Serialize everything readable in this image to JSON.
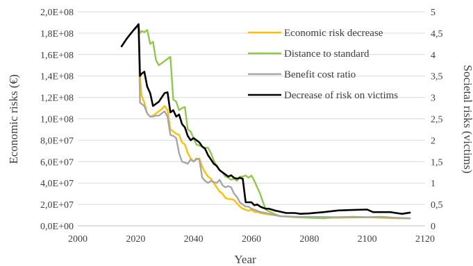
{
  "chart_data": {
    "type": "line",
    "x_axis": {
      "label": "Year",
      "range": [
        2000,
        2120
      ],
      "ticks": [
        "2000",
        "2020",
        "2040",
        "2060",
        "2080",
        "2100",
        "2120"
      ]
    },
    "y_axis_left": {
      "label": "Economic risks (€)",
      "range": [
        0,
        200000000
      ],
      "ticks": [
        "0,0E+00",
        "2,0E+07",
        "4,0E+07",
        "6,0E+07",
        "8,0E+07",
        "1,0E+08",
        "1,2E+08",
        "1,4E+08",
        "1,6E+08",
        "1,8E+08",
        "2,0E+08"
      ]
    },
    "y_axis_right": {
      "label": "Societal risks (victims)",
      "range": [
        0,
        5
      ],
      "ticks": [
        "0",
        "0,5",
        "1",
        "1,5",
        "2",
        "2,5",
        "3",
        "3,5",
        "4",
        "4,5",
        "5"
      ]
    },
    "grid": "horizontal",
    "legend_position": "top-right",
    "series": [
      {
        "name": "Economic risk decrease",
        "color": "#FFC000",
        "axis": "left",
        "points": [
          [
            2015,
            167000000.0
          ],
          [
            2017,
            175000000.0
          ],
          [
            2019,
            182000000.0
          ],
          [
            2021,
            187000000.0
          ],
          [
            2021.5,
            140000000.0
          ],
          [
            2022,
            122000000.0
          ],
          [
            2023,
            115000000.0
          ],
          [
            2024,
            105000000.0
          ],
          [
            2025,
            102000000.0
          ],
          [
            2026,
            103000000.0
          ],
          [
            2027,
            105000000.0
          ],
          [
            2028,
            107000000.0
          ],
          [
            2029,
            109000000.0
          ],
          [
            2030,
            112000000.0
          ],
          [
            2031,
            108000000.0
          ],
          [
            2032,
            90000000.0
          ],
          [
            2033,
            88000000.0
          ],
          [
            2034,
            86000000.0
          ],
          [
            2035,
            85000000.0
          ],
          [
            2036,
            78000000.0
          ],
          [
            2037,
            76000000.0
          ],
          [
            2038,
            68000000.0
          ],
          [
            2039,
            63000000.0
          ],
          [
            2040,
            60000000.0
          ],
          [
            2041,
            62000000.0
          ],
          [
            2042,
            63000000.0
          ],
          [
            2043,
            55000000.0
          ],
          [
            2044,
            50000000.0
          ],
          [
            2045,
            46000000.0
          ],
          [
            2046,
            44000000.0
          ],
          [
            2047,
            40000000.0
          ],
          [
            2048,
            36000000.0
          ],
          [
            2049,
            32000000.0
          ],
          [
            2050,
            30000000.0
          ],
          [
            2051,
            26000000.0
          ],
          [
            2052,
            25000000.0
          ],
          [
            2053,
            25000000.0
          ],
          [
            2054,
            24000000.0
          ],
          [
            2055,
            21000000.0
          ],
          [
            2056,
            18000000.0
          ],
          [
            2057,
            16000000.0
          ],
          [
            2058,
            15000000.0
          ],
          [
            2059,
            14000000.0
          ],
          [
            2060,
            15000000.0
          ],
          [
            2061,
            13000000.0
          ],
          [
            2062,
            13000000.0
          ],
          [
            2063,
            12000000.0
          ],
          [
            2065,
            11000000.0
          ],
          [
            2068,
            10000000.0
          ],
          [
            2070,
            9000000.0
          ],
          [
            2075,
            8500000.0
          ],
          [
            2080,
            8000000.0
          ],
          [
            2090,
            7500000.0
          ],
          [
            2100,
            8000000.0
          ],
          [
            2105,
            7500000.0
          ],
          [
            2110,
            7000000.0
          ],
          [
            2115,
            7000000.0
          ]
        ]
      },
      {
        "name": "Distance to standard",
        "color": "#8FC84A",
        "axis": "left",
        "points": [
          [
            2015,
            167000000.0
          ],
          [
            2017,
            175000000.0
          ],
          [
            2019,
            182000000.0
          ],
          [
            2021,
            187000000.0
          ],
          [
            2021.5,
            180000000.0
          ],
          [
            2022,
            182000000.0
          ],
          [
            2023,
            181000000.0
          ],
          [
            2024,
            183000000.0
          ],
          [
            2025,
            170000000.0
          ],
          [
            2026,
            172000000.0
          ],
          [
            2027,
            155000000.0
          ],
          [
            2028,
            150000000.0
          ],
          [
            2029,
            152000000.0
          ],
          [
            2030,
            154000000.0
          ],
          [
            2031,
            156000000.0
          ],
          [
            2032,
            158000000.0
          ],
          [
            2033,
            118000000.0
          ],
          [
            2034,
            116000000.0
          ],
          [
            2035,
            108000000.0
          ],
          [
            2036,
            110000000.0
          ],
          [
            2037,
            111000000.0
          ],
          [
            2038,
            90000000.0
          ],
          [
            2039,
            88000000.0
          ],
          [
            2040,
            82000000.0
          ],
          [
            2041,
            76000000.0
          ],
          [
            2042,
            75000000.0
          ],
          [
            2043,
            74000000.0
          ],
          [
            2044,
            73000000.0
          ],
          [
            2045,
            73000000.0
          ],
          [
            2046,
            68000000.0
          ],
          [
            2047,
            61000000.0
          ],
          [
            2048,
            56000000.0
          ],
          [
            2049,
            52000000.0
          ],
          [
            2050,
            50000000.0
          ],
          [
            2051,
            46000000.0
          ],
          [
            2052,
            45000000.0
          ],
          [
            2053,
            43000000.0
          ],
          [
            2054,
            44000000.0
          ],
          [
            2055,
            42000000.0
          ],
          [
            2056,
            46000000.0
          ],
          [
            2057,
            46000000.0
          ],
          [
            2058,
            47000000.0
          ],
          [
            2059,
            45000000.0
          ],
          [
            2060,
            47000000.0
          ],
          [
            2061,
            42000000.0
          ],
          [
            2062,
            36000000.0
          ],
          [
            2063,
            30000000.0
          ],
          [
            2064,
            22000000.0
          ],
          [
            2065,
            15000000.0
          ],
          [
            2068,
            11000000.0
          ],
          [
            2070,
            9000000.0
          ],
          [
            2075,
            8000000.0
          ],
          [
            2080,
            7500000.0
          ],
          [
            2085,
            7000000.0
          ],
          [
            2090,
            8000000.0
          ],
          [
            2095,
            8500000.0
          ],
          [
            2100,
            8000000.0
          ],
          [
            2105,
            8500000.0
          ],
          [
            2110,
            7500000.0
          ],
          [
            2115,
            7000000.0
          ]
        ]
      },
      {
        "name": "Benefit cost ratio",
        "color": "#A6A6A6",
        "axis": "left",
        "points": [
          [
            2015,
            167000000.0
          ],
          [
            2017,
            175000000.0
          ],
          [
            2019,
            182000000.0
          ],
          [
            2021,
            187000000.0
          ],
          [
            2021.5,
            115000000.0
          ],
          [
            2022,
            114000000.0
          ],
          [
            2023,
            112000000.0
          ],
          [
            2024,
            105000000.0
          ],
          [
            2025,
            102000000.0
          ],
          [
            2026,
            102000000.0
          ],
          [
            2027,
            103000000.0
          ],
          [
            2028,
            103000000.0
          ],
          [
            2029,
            105000000.0
          ],
          [
            2030,
            107000000.0
          ],
          [
            2031,
            102000000.0
          ],
          [
            2032,
            85000000.0
          ],
          [
            2033,
            84000000.0
          ],
          [
            2034,
            82000000.0
          ],
          [
            2035,
            68000000.0
          ],
          [
            2036,
            60000000.0
          ],
          [
            2037,
            59000000.0
          ],
          [
            2038,
            58000000.0
          ],
          [
            2039,
            62000000.0
          ],
          [
            2040,
            60000000.0
          ],
          [
            2041,
            63000000.0
          ],
          [
            2042,
            62000000.0
          ],
          [
            2043,
            45000000.0
          ],
          [
            2044,
            42000000.0
          ],
          [
            2045,
            40000000.0
          ],
          [
            2046,
            42000000.0
          ],
          [
            2047,
            41000000.0
          ],
          [
            2048,
            40000000.0
          ],
          [
            2049,
            43000000.0
          ],
          [
            2050,
            38000000.0
          ],
          [
            2051,
            36000000.0
          ],
          [
            2052,
            37000000.0
          ],
          [
            2053,
            36000000.0
          ],
          [
            2054,
            30000000.0
          ],
          [
            2055,
            27000000.0
          ],
          [
            2056,
            22000000.0
          ],
          [
            2057,
            20000000.0
          ],
          [
            2058,
            18000000.0
          ],
          [
            2059,
            18000000.0
          ],
          [
            2060,
            16000000.0
          ],
          [
            2061,
            15000000.0
          ],
          [
            2062,
            14000000.0
          ],
          [
            2063,
            13000000.0
          ],
          [
            2065,
            12000000.0
          ],
          [
            2068,
            10000000.0
          ],
          [
            2070,
            9000000.0
          ],
          [
            2075,
            8500000.0
          ],
          [
            2080,
            8500000.0
          ],
          [
            2090,
            8000000.0
          ],
          [
            2100,
            8000000.0
          ],
          [
            2105,
            8000000.0
          ],
          [
            2110,
            7500000.0
          ],
          [
            2115,
            7000000.0
          ]
        ]
      },
      {
        "name": "Decrease of risk on victims",
        "color": "#000000",
        "axis": "right",
        "points": [
          [
            2015,
            4.18
          ],
          [
            2017,
            4.38
          ],
          [
            2019,
            4.55
          ],
          [
            2021,
            4.71
          ],
          [
            2021.5,
            3.5
          ],
          [
            2022,
            3.55
          ],
          [
            2023,
            3.6
          ],
          [
            2024,
            3.25
          ],
          [
            2025,
            3.1
          ],
          [
            2026,
            2.8
          ],
          [
            2027,
            2.85
          ],
          [
            2028,
            2.9
          ],
          [
            2029,
            3.0
          ],
          [
            2030,
            3.1
          ],
          [
            2031,
            3.12
          ],
          [
            2032,
            2.65
          ],
          [
            2033,
            2.7
          ],
          [
            2034,
            2.55
          ],
          [
            2035,
            2.6
          ],
          [
            2036,
            2.38
          ],
          [
            2037,
            2.3
          ],
          [
            2038,
            2.1
          ],
          [
            2039,
            2.0
          ],
          [
            2040,
            2.05
          ],
          [
            2041,
            2.0
          ],
          [
            2042,
            1.95
          ],
          [
            2043,
            1.85
          ],
          [
            2044,
            1.8
          ],
          [
            2045,
            1.65
          ],
          [
            2046,
            1.55
          ],
          [
            2047,
            1.45
          ],
          [
            2048,
            1.4
          ],
          [
            2049,
            1.3
          ],
          [
            2050,
            1.25
          ],
          [
            2051,
            1.2
          ],
          [
            2052,
            1.15
          ],
          [
            2053,
            1.18
          ],
          [
            2054,
            1.12
          ],
          [
            2055,
            1.1
          ],
          [
            2056,
            1.12
          ],
          [
            2057,
            1.1
          ],
          [
            2058,
            0.55
          ],
          [
            2059,
            0.55
          ],
          [
            2060,
            0.55
          ],
          [
            2061,
            0.48
          ],
          [
            2062,
            0.5
          ],
          [
            2063,
            0.45
          ],
          [
            2064,
            0.42
          ],
          [
            2065,
            0.4
          ],
          [
            2066,
            0.4
          ],
          [
            2067,
            0.38
          ],
          [
            2068,
            0.36
          ],
          [
            2070,
            0.33
          ],
          [
            2072,
            0.3
          ],
          [
            2075,
            0.3
          ],
          [
            2077,
            0.28
          ],
          [
            2080,
            0.29
          ],
          [
            2085,
            0.32
          ],
          [
            2090,
            0.36
          ],
          [
            2095,
            0.37
          ],
          [
            2100,
            0.38
          ],
          [
            2102,
            0.32
          ],
          [
            2105,
            0.32
          ],
          [
            2108,
            0.32
          ],
          [
            2110,
            0.3
          ],
          [
            2112,
            0.28
          ],
          [
            2115,
            0.31
          ]
        ]
      }
    ]
  }
}
